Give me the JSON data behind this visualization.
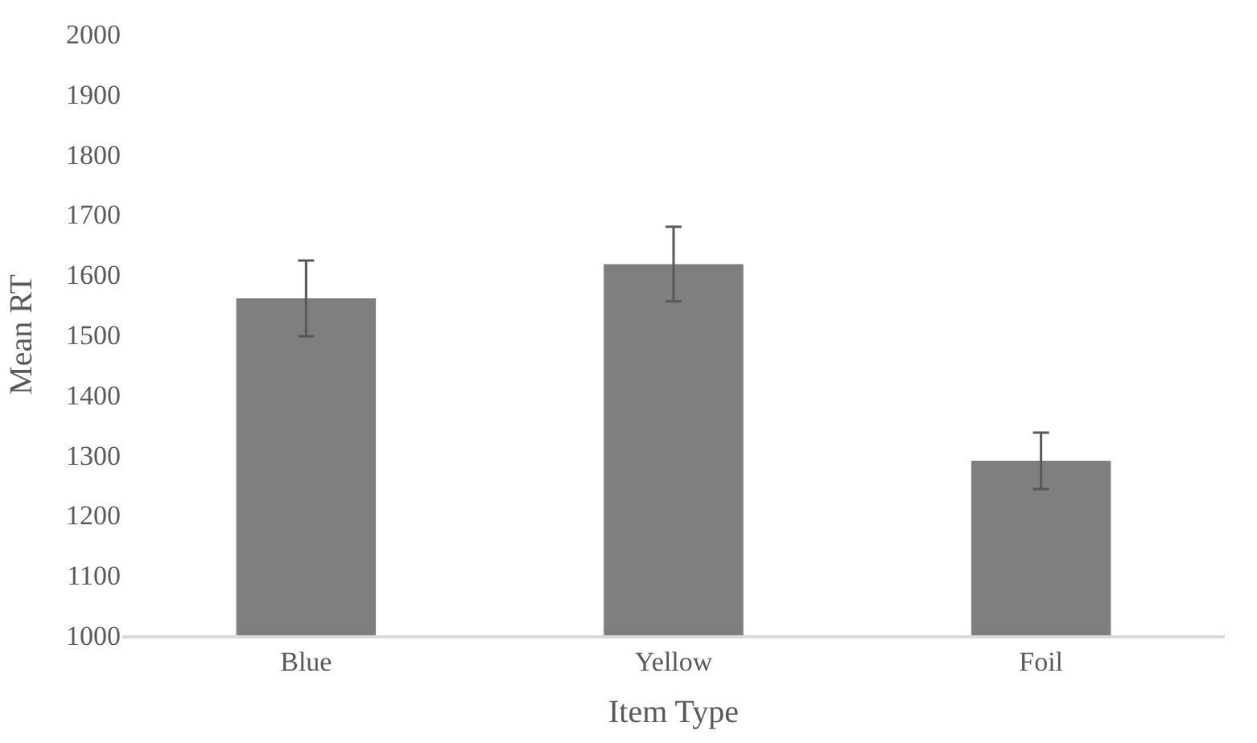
{
  "chart_data": {
    "type": "bar",
    "xlabel": "Item Type",
    "ylabel": "Mean RT",
    "categories": [
      "Blue",
      "Yellow",
      "Foil"
    ],
    "values": [
      1560,
      1617,
      1290
    ],
    "errors": [
      63,
      62,
      47
    ],
    "color": "#7f7f7f",
    "ylim": [
      1000,
      2000
    ],
    "yticks": [
      1000,
      1100,
      1200,
      1300,
      1400,
      1500,
      1600,
      1700,
      1800,
      1900,
      2000
    ],
    "legend": false
  }
}
